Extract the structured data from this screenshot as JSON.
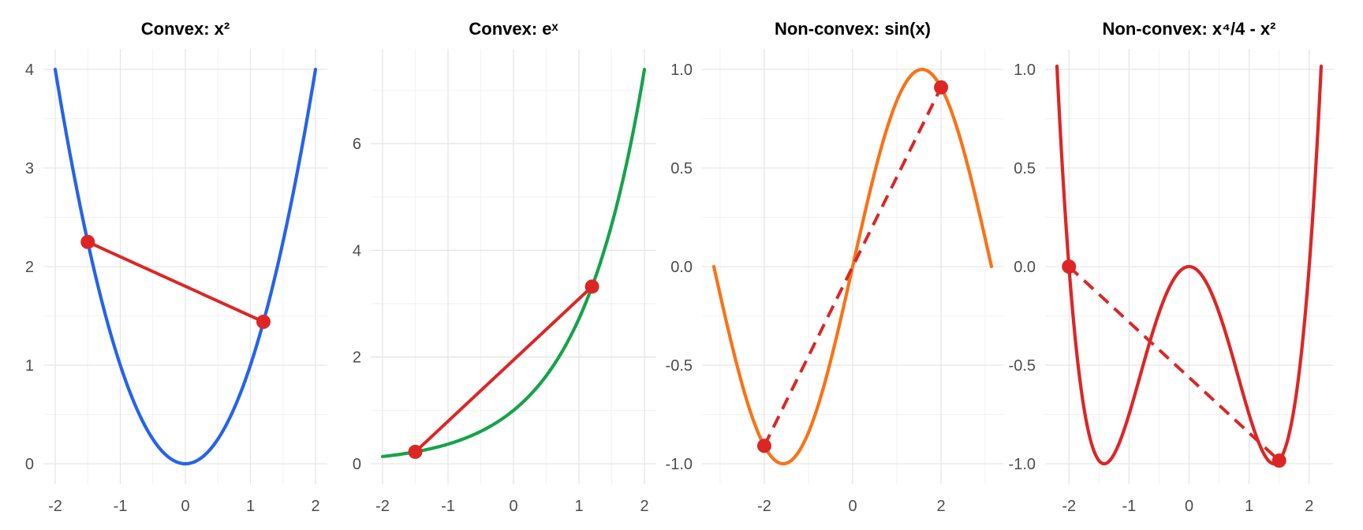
{
  "chart_data": [
    {
      "type": "line",
      "title": "Convex: x²",
      "function": "x^2",
      "xlabel": "",
      "ylabel": "",
      "xlim": [
        -2,
        2
      ],
      "ylim": [
        0,
        4
      ],
      "xticks": [
        -2,
        -1,
        0,
        1,
        2
      ],
      "xtick_labels": [
        "-2",
        "-1",
        "0",
        "1",
        "2"
      ],
      "yticks": [
        0,
        1,
        2,
        3,
        4
      ],
      "ytick_labels": [
        "0",
        "1",
        "2",
        "3",
        "4"
      ],
      "grid": true,
      "series": [
        {
          "x": [
            -2,
            -1.5,
            -1,
            -0.5,
            0,
            0.5,
            1,
            1.5,
            2
          ],
          "y": [
            4,
            2.25,
            1,
            0.25,
            0,
            0.25,
            1,
            2.25,
            4
          ],
          "color": "#2563eb"
        }
      ],
      "chord": {
        "x": [
          -1.5,
          1.2
        ],
        "y": [
          2.25,
          1.44
        ],
        "color": "#dc2626",
        "style": "solid"
      }
    },
    {
      "type": "line",
      "title": "Convex: eˣ",
      "function": "exp(x)",
      "xlabel": "",
      "ylabel": "",
      "xlim": [
        -2,
        2
      ],
      "ylim": [
        0,
        7.39
      ],
      "xticks": [
        -2,
        -1,
        0,
        1,
        2
      ],
      "xtick_labels": [
        "-2",
        "-1",
        "0",
        "1",
        "2"
      ],
      "yticks": [
        0,
        2,
        4,
        6
      ],
      "ytick_labels": [
        "0",
        "2",
        "4",
        "6"
      ],
      "grid": true,
      "series": [
        {
          "x": [
            -2,
            -1.5,
            -1,
            -0.5,
            0,
            0.5,
            1,
            1.5,
            2
          ],
          "y": [
            0.135,
            0.223,
            0.368,
            0.607,
            1,
            1.649,
            2.718,
            4.482,
            7.389
          ],
          "color": "#16a34a"
        }
      ],
      "chord": {
        "x": [
          -1.5,
          1.2
        ],
        "y": [
          0.223,
          3.32
        ],
        "color": "#dc2626",
        "style": "solid"
      }
    },
    {
      "type": "line",
      "title": "Non-convex: sin(x)",
      "function": "sin(x)",
      "xlabel": "",
      "ylabel": "",
      "xlim": [
        -3.14159,
        3.14159
      ],
      "ylim": [
        -1,
        1
      ],
      "xticks": [
        -2,
        0,
        2
      ],
      "xtick_labels": [
        "-2",
        "0",
        "2"
      ],
      "yticks": [
        -1,
        -0.5,
        0,
        0.5,
        1
      ],
      "ytick_labels": [
        "-1.0",
        "-0.5",
        "0.0",
        "0.5",
        "1.0"
      ],
      "grid": true,
      "series": [
        {
          "x": [
            -3.14,
            -2,
            -1.57,
            -1,
            0,
            1,
            1.57,
            2,
            3.14
          ],
          "y": [
            0,
            -0.909,
            -1,
            -0.841,
            0,
            0.841,
            1,
            0.909,
            0
          ],
          "color": "#f97316"
        }
      ],
      "chord": {
        "x": [
          -2,
          2
        ],
        "y": [
          -0.909,
          0.909
        ],
        "color": "#dc2626",
        "style": "dashed"
      }
    },
    {
      "type": "line",
      "title": "Non-convex: x⁴/4 - x²",
      "function": "x^4/4 - x^2",
      "xlabel": "",
      "ylabel": "",
      "xlim": [
        -2.2,
        2.2
      ],
      "ylim": [
        -1,
        1
      ],
      "xticks": [
        -2,
        -1,
        0,
        1,
        2
      ],
      "xtick_labels": [
        "-2",
        "-1",
        "0",
        "1",
        "2"
      ],
      "yticks": [
        -1,
        -0.5,
        0,
        0.5,
        1
      ],
      "ytick_labels": [
        "-1.0",
        "-0.5",
        "0.0",
        "0.5",
        "1.0"
      ],
      "grid": true,
      "series": [
        {
          "x": [
            -2.2,
            -2,
            -1.414,
            -1,
            0,
            1,
            1.414,
            2,
            2.2
          ],
          "y": [
            1.01,
            0,
            -1,
            -0.75,
            0,
            -0.75,
            -1,
            0,
            1.01
          ],
          "color": "#dc2626"
        }
      ],
      "chord": {
        "x": [
          -2,
          1.5
        ],
        "y": [
          0,
          -0.984
        ],
        "color": "#dc2626",
        "style": "dashed"
      }
    }
  ]
}
